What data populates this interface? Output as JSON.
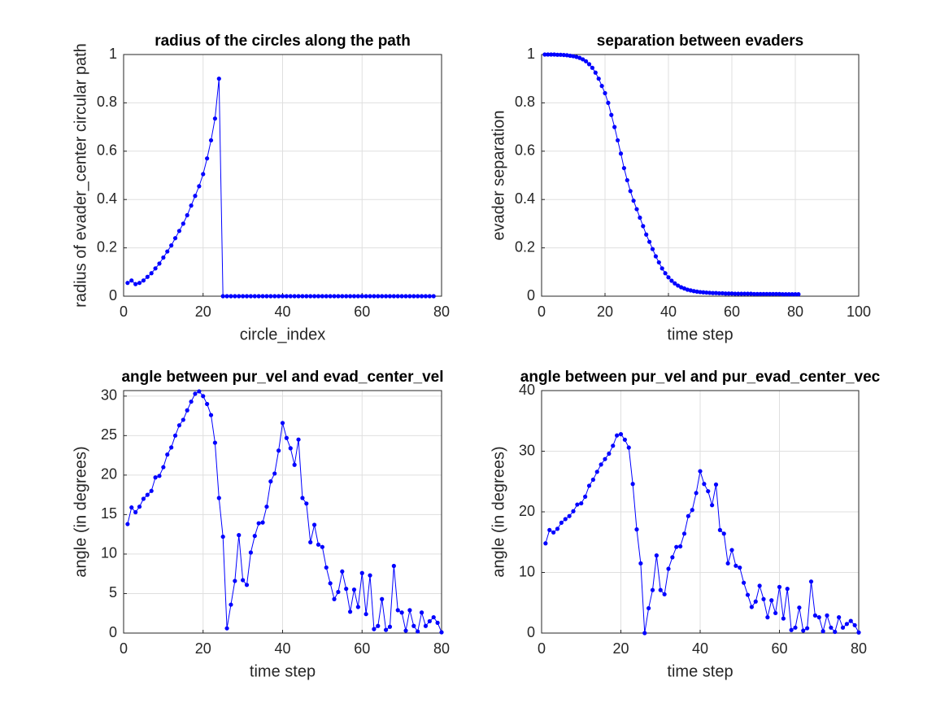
{
  "chart_data": [
    {
      "type": "line",
      "title": "radius of the circles along the path",
      "xlabel": "circle_index",
      "ylabel": "radius of evader_center circular path",
      "x": [
        1,
        2,
        3,
        4,
        5,
        6,
        7,
        8,
        9,
        10,
        11,
        12,
        13,
        14,
        15,
        16,
        17,
        18,
        19,
        20,
        21,
        22,
        23,
        24,
        25,
        26,
        27,
        28,
        29,
        30,
        31,
        32,
        33,
        34,
        35,
        36,
        37,
        38,
        39,
        40,
        41,
        42,
        43,
        44,
        45,
        46,
        47,
        48,
        49,
        50,
        51,
        52,
        53,
        54,
        55,
        56,
        57,
        58,
        59,
        60,
        61,
        62,
        63,
        64,
        65,
        66,
        67,
        68,
        69,
        70,
        71,
        72,
        73,
        74,
        75,
        76,
        77,
        78
      ],
      "values": [
        0.055,
        0.065,
        0.05,
        0.055,
        0.065,
        0.08,
        0.095,
        0.115,
        0.135,
        0.16,
        0.185,
        0.21,
        0.24,
        0.27,
        0.3,
        0.335,
        0.375,
        0.415,
        0.455,
        0.505,
        0.57,
        0.645,
        0.735,
        0.9,
        0,
        0,
        0,
        0,
        0,
        0,
        0,
        0,
        0,
        0,
        0,
        0,
        0,
        0,
        0,
        0,
        0,
        0,
        0,
        0,
        0,
        0,
        0,
        0,
        0,
        0,
        0,
        0,
        0,
        0,
        0,
        0,
        0,
        0,
        0,
        0,
        0,
        0,
        0,
        0,
        0,
        0,
        0,
        0,
        0,
        0,
        0,
        0,
        0,
        0,
        0,
        0,
        0,
        0
      ],
      "color": "#0000ff",
      "xlim": [
        0,
        80
      ],
      "xticks": [
        0,
        20,
        40,
        60,
        80
      ],
      "ylim": [
        0,
        1
      ],
      "yticks": [
        0,
        0.2,
        0.4,
        0.6,
        0.8,
        1
      ],
      "grid": true
    },
    {
      "type": "line",
      "title": "separation between evaders",
      "xlabel": "time step",
      "ylabel": "evader separation",
      "x": [
        1,
        2,
        3,
        4,
        5,
        6,
        7,
        8,
        9,
        10,
        11,
        12,
        13,
        14,
        15,
        16,
        17,
        18,
        19,
        20,
        21,
        22,
        23,
        24,
        25,
        26,
        27,
        28,
        29,
        30,
        31,
        32,
        33,
        34,
        35,
        36,
        37,
        38,
        39,
        40,
        41,
        42,
        43,
        44,
        45,
        46,
        47,
        48,
        49,
        50,
        51,
        52,
        53,
        54,
        55,
        56,
        57,
        58,
        59,
        60,
        61,
        62,
        63,
        64,
        65,
        66,
        67,
        68,
        69,
        70,
        71,
        72,
        73,
        74,
        75,
        76,
        77,
        78,
        79,
        80,
        81
      ],
      "values": [
        1,
        1,
        1,
        1,
        0.999,
        0.999,
        0.998,
        0.997,
        0.995,
        0.993,
        0.99,
        0.986,
        0.98,
        0.972,
        0.96,
        0.945,
        0.925,
        0.9,
        0.87,
        0.84,
        0.8,
        0.75,
        0.7,
        0.645,
        0.59,
        0.53,
        0.48,
        0.435,
        0.395,
        0.36,
        0.325,
        0.29,
        0.255,
        0.225,
        0.195,
        0.165,
        0.14,
        0.115,
        0.095,
        0.078,
        0.064,
        0.053,
        0.044,
        0.037,
        0.032,
        0.027,
        0.024,
        0.021,
        0.019,
        0.017,
        0.016,
        0.015,
        0.014,
        0.013,
        0.013,
        0.012,
        0.012,
        0.011,
        0.011,
        0.011,
        0.01,
        0.01,
        0.01,
        0.01,
        0.01,
        0.01,
        0.009,
        0.009,
        0.009,
        0.009,
        0.009,
        0.009,
        0.009,
        0.009,
        0.009,
        0.008,
        0.008,
        0.008,
        0.008,
        0.008,
        0.008
      ],
      "color": "#0000ff",
      "xlim": [
        0,
        100
      ],
      "xticks": [
        0,
        20,
        40,
        60,
        80,
        100
      ],
      "ylim": [
        0,
        1
      ],
      "yticks": [
        0,
        0.2,
        0.4,
        0.6,
        0.8,
        1
      ],
      "grid": true
    },
    {
      "type": "line",
      "title": "angle between pur_vel and evad_center_vel",
      "xlabel": "time step",
      "ylabel": "angle (in degrees)",
      "x": [
        1,
        2,
        3,
        4,
        5,
        6,
        7,
        8,
        9,
        10,
        11,
        12,
        13,
        14,
        15,
        16,
        17,
        18,
        19,
        20,
        21,
        22,
        23,
        24,
        25,
        26,
        27,
        28,
        29,
        30,
        31,
        32,
        33,
        34,
        35,
        36,
        37,
        38,
        39,
        40,
        41,
        42,
        43,
        44,
        45,
        46,
        47,
        48,
        49,
        50,
        51,
        52,
        53,
        54,
        55,
        56,
        57,
        58,
        59,
        60,
        61,
        62,
        63,
        64,
        65,
        66,
        67,
        68,
        69,
        70,
        71,
        72,
        73,
        74,
        75,
        76,
        77,
        78,
        79,
        80
      ],
      "values": [
        13.8,
        15.9,
        15.3,
        16,
        17,
        17.5,
        18,
        19.7,
        19.9,
        21,
        22.6,
        23.5,
        25,
        26.3,
        27,
        28.2,
        29.3,
        30.3,
        30.6,
        30,
        29,
        27.6,
        24.1,
        17.1,
        12.2,
        0.6,
        3.6,
        6.6,
        12.4,
        6.7,
        6.1,
        10.2,
        12.3,
        13.9,
        14,
        16,
        19.2,
        20.2,
        23.1,
        26.6,
        24.7,
        23.4,
        21.3,
        24.5,
        17.1,
        16.4,
        11.5,
        13.7,
        11.2,
        10.9,
        8.3,
        6.3,
        4.3,
        5.2,
        7.8,
        5.6,
        2.7,
        5.5,
        3.3,
        7.6,
        2.4,
        7.3,
        0.5,
        0.9,
        4.3,
        0.4,
        0.8,
        8.5,
        2.9,
        2.6,
        0.3,
        2.9,
        0.9,
        0.2,
        2.6,
        0.9,
        1.5,
        2,
        1.3,
        0.1
      ],
      "color": "#0000ff",
      "xlim": [
        0,
        80
      ],
      "xticks": [
        0,
        20,
        40,
        60,
        80
      ],
      "ylim": [
        0,
        30.7
      ],
      "yticks": [
        0,
        5,
        10,
        15,
        20,
        25,
        30
      ],
      "grid": true
    },
    {
      "type": "line",
      "title": "angle between pur_vel and pur_evad_center_vec",
      "xlabel": "time step",
      "ylabel": "angle (in degrees)",
      "x": [
        1,
        2,
        3,
        4,
        5,
        6,
        7,
        8,
        9,
        10,
        11,
        12,
        13,
        14,
        15,
        16,
        17,
        18,
        19,
        20,
        21,
        22,
        23,
        24,
        25,
        26,
        27,
        28,
        29,
        30,
        31,
        32,
        33,
        34,
        35,
        36,
        37,
        38,
        39,
        40,
        41,
        42,
        43,
        44,
        45,
        46,
        47,
        48,
        49,
        50,
        51,
        52,
        53,
        54,
        55,
        56,
        57,
        58,
        59,
        60,
        61,
        62,
        63,
        64,
        65,
        66,
        67,
        68,
        69,
        70,
        71,
        72,
        73,
        74,
        75,
        76,
        77,
        78,
        79,
        80
      ],
      "values": [
        14.8,
        17,
        16.6,
        17.2,
        18.2,
        18.8,
        19.3,
        20.1,
        21.2,
        21.4,
        22.5,
        24.3,
        25.3,
        26.6,
        27.8,
        28.7,
        29.6,
        30.9,
        32.6,
        32.8,
        31.9,
        30.6,
        24.6,
        17.1,
        11.5,
        0,
        4.1,
        7.1,
        12.8,
        7.1,
        6.4,
        10.6,
        12.5,
        14.2,
        14.3,
        16.4,
        19.3,
        20.3,
        23.1,
        26.7,
        24.6,
        23.4,
        21.1,
        24.5,
        17,
        16.4,
        11.5,
        13.7,
        11.1,
        10.8,
        8.3,
        6.3,
        4.3,
        5.2,
        7.8,
        5.6,
        2.6,
        5.4,
        3.3,
        7.6,
        2.4,
        7.3,
        0.5,
        0.9,
        4.2,
        0.4,
        0.8,
        8.5,
        2.9,
        2.6,
        0.3,
        2.9,
        0.9,
        0.2,
        2.6,
        0.9,
        1.5,
        2,
        1.3,
        0.1
      ],
      "color": "#0000ff",
      "xlim": [
        0,
        80
      ],
      "xticks": [
        0,
        20,
        40,
        60,
        80
      ],
      "ylim": [
        0,
        40
      ],
      "yticks": [
        0,
        10,
        20,
        30,
        40
      ],
      "grid": true
    }
  ]
}
